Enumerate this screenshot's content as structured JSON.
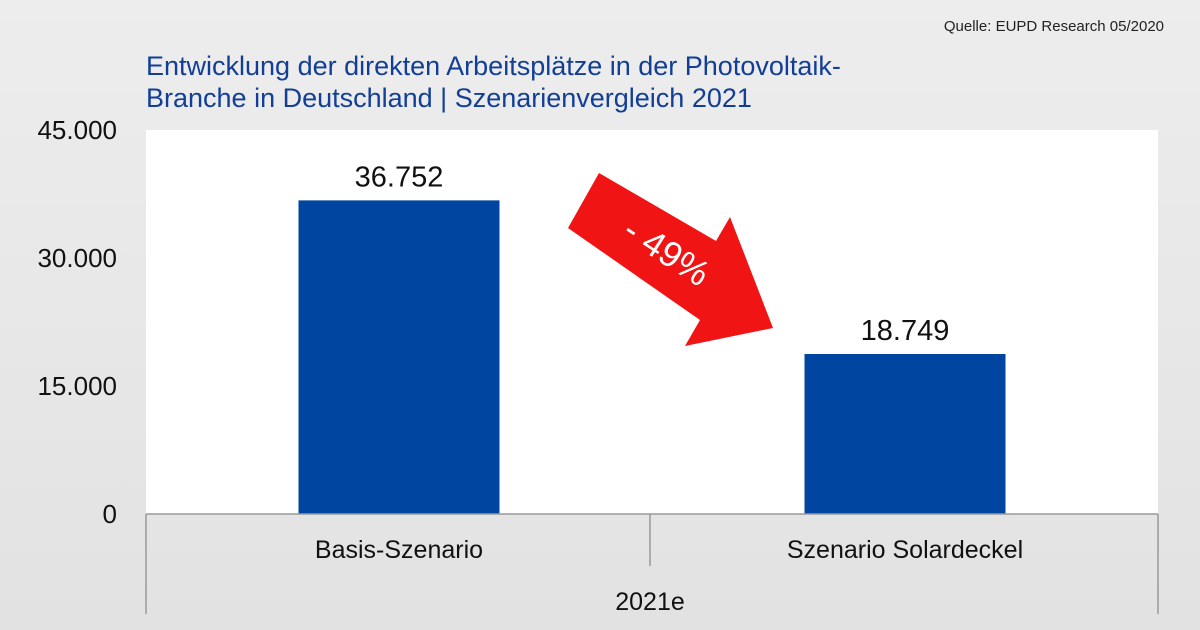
{
  "source_label": "Quelle: EUPD Research 05/2020",
  "title_line1": "Entwicklung der direkten Arbeitsplätze in der Photovoltaik-",
  "title_line2": "Branche in Deutschland | Szenarienvergleich 2021",
  "chart_data": {
    "type": "bar",
    "categories": [
      "Basis-Szenario",
      "Szenario Solardeckel"
    ],
    "values": [
      36752,
      18749
    ],
    "value_labels": [
      "36.752",
      "18.749"
    ],
    "group_label": "2021e",
    "ylim": [
      0,
      45000
    ],
    "yticks": [
      0,
      15000,
      30000,
      45000
    ],
    "ytick_labels": [
      "0",
      "15.000",
      "30.000",
      "45.000"
    ],
    "annotation": "- 49%",
    "colors": {
      "bar": "#0046a0",
      "arrow": "#f01414",
      "title": "#123e96",
      "plot_background": "#ffffff"
    },
    "grid": false,
    "legend": "none"
  }
}
